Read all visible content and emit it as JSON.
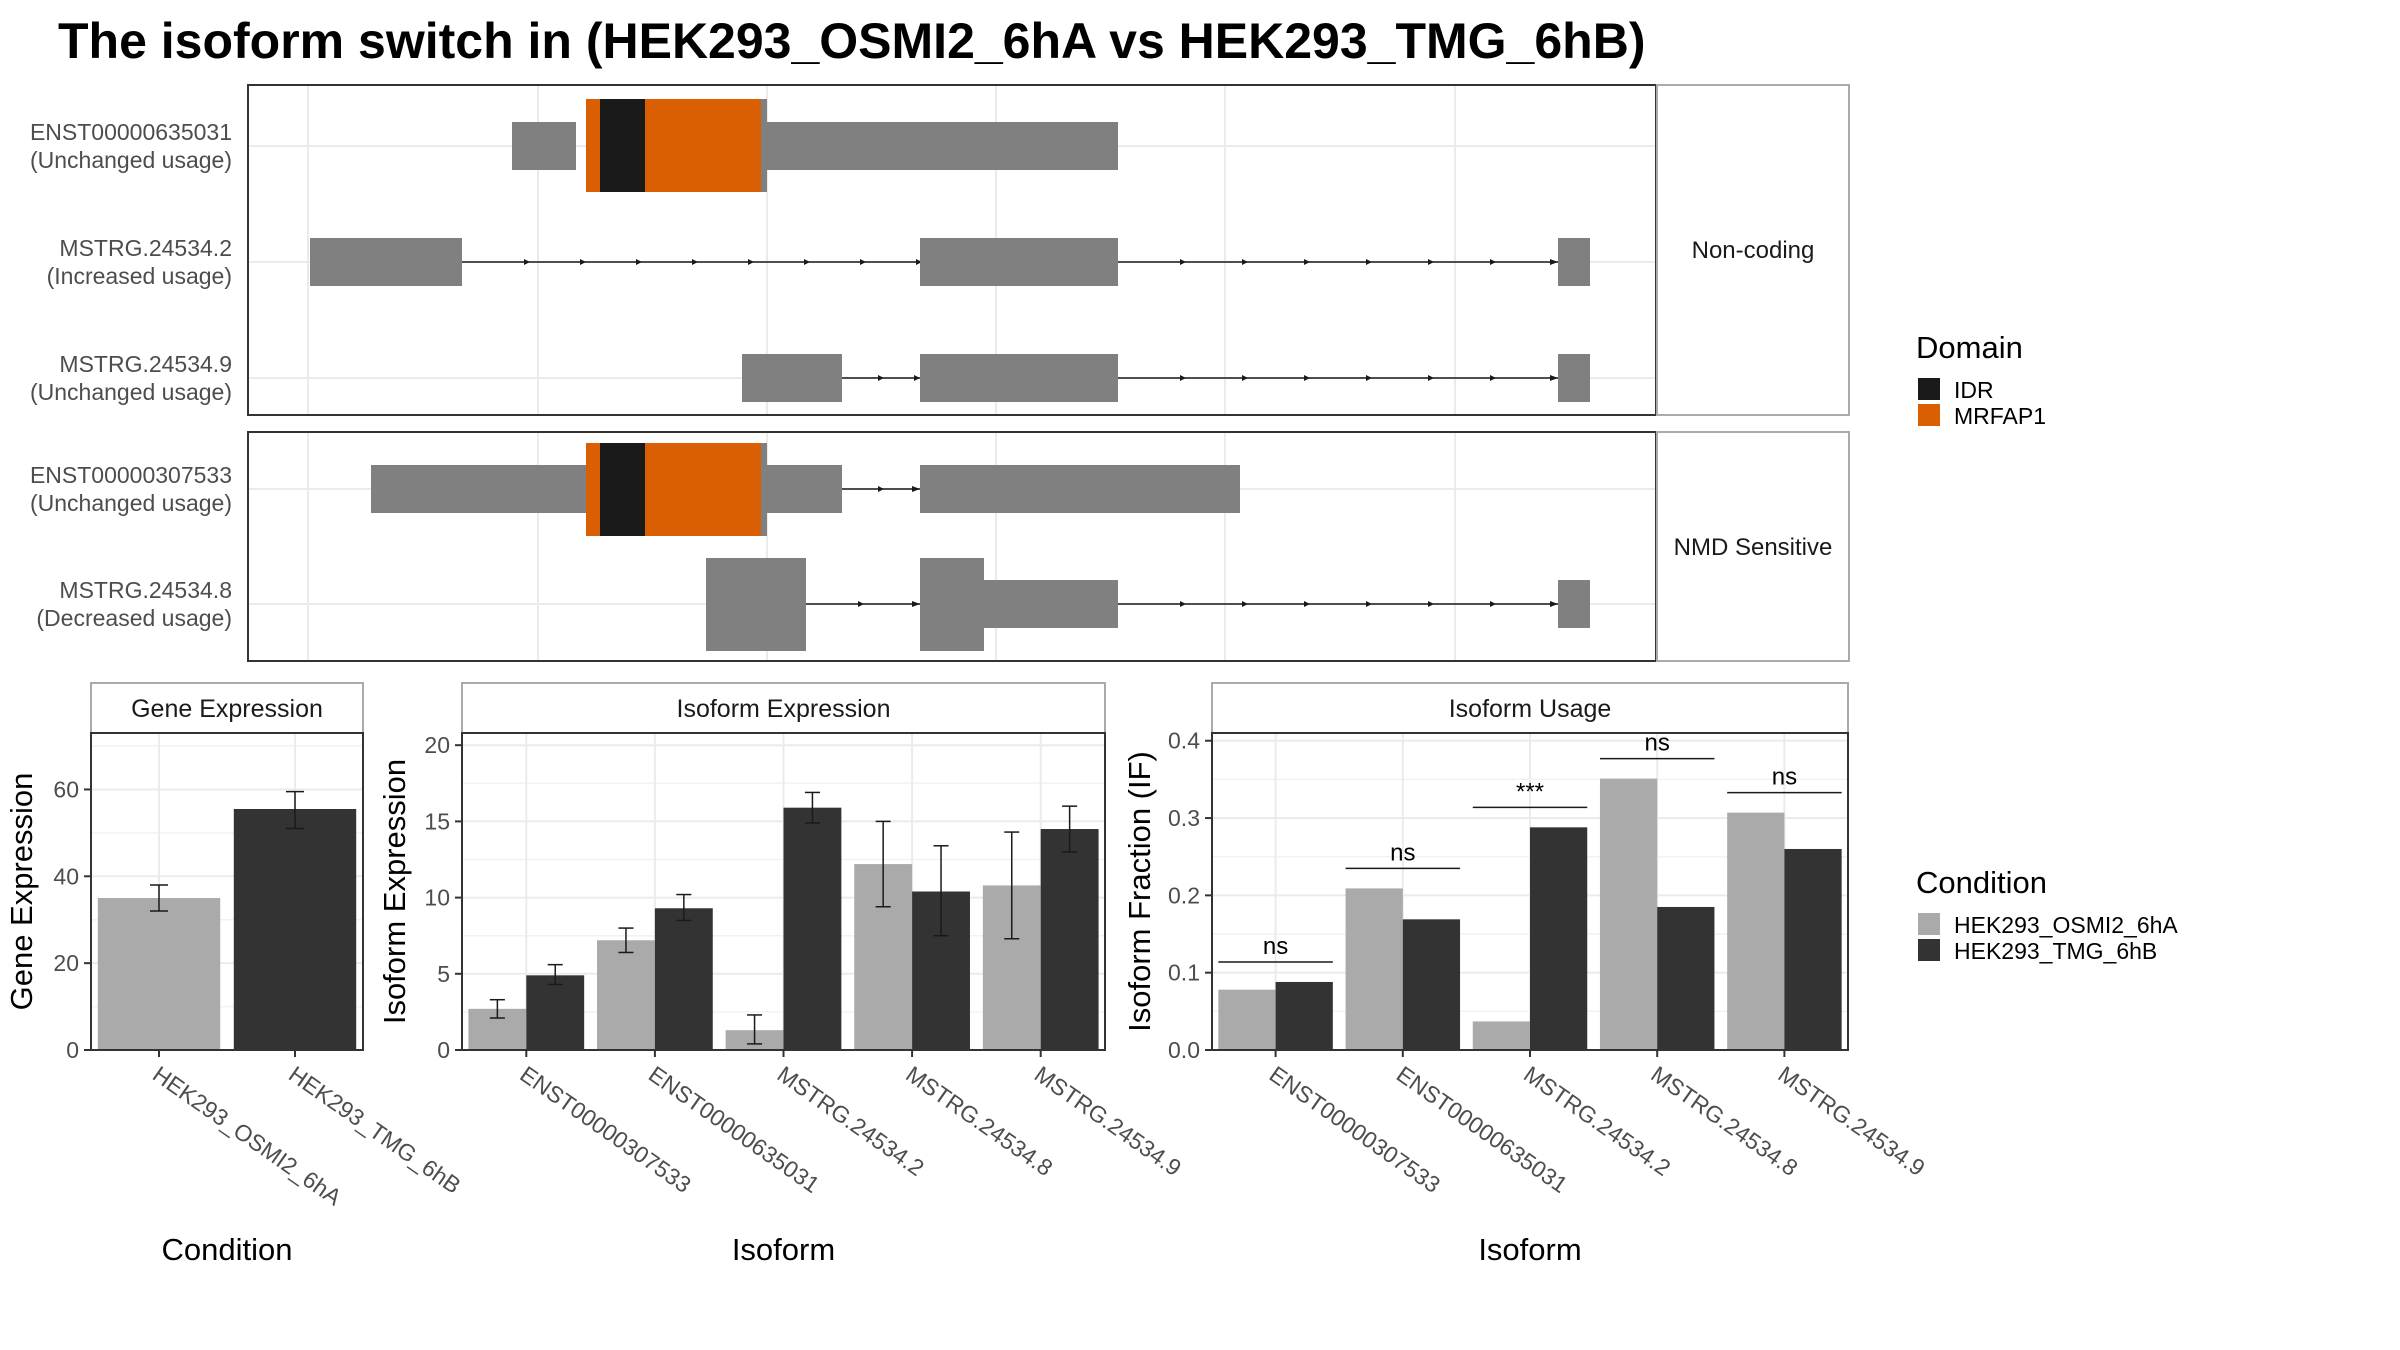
{
  "title": "The isoform switch in  (HEK293_OSMI2_6hA vs HEK293_TMG_6hB)",
  "structure": {
    "facets": [
      {
        "label": "Non-coding",
        "transcripts": [
          {
            "id": "ENST00000635031",
            "usage": "(Unchanged usage)"
          },
          {
            "id": "MSTRG.24534.2",
            "usage": "(Increased usage)"
          },
          {
            "id": "MSTRG.24534.9",
            "usage": "(Unchanged usage)"
          }
        ]
      },
      {
        "label": "NMD Sensitive",
        "transcripts": [
          {
            "id": "ENST00000307533",
            "usage": "(Unchanged usage)"
          },
          {
            "id": "MSTRG.24534.8",
            "usage": "(Decreased usage)"
          }
        ]
      }
    ],
    "domain_legend": {
      "title": "Domain",
      "items": [
        {
          "label": "IDR",
          "color": "#1a1a1a"
        },
        {
          "label": "MRFAP1",
          "color": "#d95f02"
        }
      ]
    }
  },
  "condition_legend": {
    "title": "Condition",
    "items": [
      {
        "label": "HEK293_OSMI2_6hA",
        "color": "#aaaaaa"
      },
      {
        "label": "HEK293_TMG_6hB",
        "color": "#333333"
      }
    ]
  },
  "chart_data": [
    {
      "type": "bar",
      "title": "Gene Expression",
      "xlabel": "Condition",
      "ylabel": "Gene Expression",
      "ylim": [
        0,
        73
      ],
      "yticks": [
        0,
        20,
        40,
        60
      ],
      "categories": [
        "HEK293_OSMI2_6hA",
        "HEK293_TMG_6hB"
      ],
      "values": [
        35,
        55.5
      ],
      "errors": [
        [
          32,
          38
        ],
        [
          51,
          59.5
        ]
      ],
      "colors": [
        "#aaaaaa",
        "#333333"
      ]
    },
    {
      "type": "bar",
      "title": "Isoform Expression",
      "xlabel": "Isoform",
      "ylabel": "Isoform Expression",
      "ylim": [
        0,
        20.8
      ],
      "yticks": [
        0,
        5,
        10,
        15,
        20
      ],
      "categories": [
        "ENST00000307533",
        "ENST00000635031",
        "MSTRG.24534.2",
        "MSTRG.24534.8",
        "MSTRG.24534.9"
      ],
      "series": [
        {
          "name": "HEK293_OSMI2_6hA",
          "values": [
            2.7,
            7.2,
            1.3,
            12.2,
            10.8
          ],
          "errors": [
            [
              2.1,
              3.3
            ],
            [
              6.4,
              8.0
            ],
            [
              0.4,
              2.3
            ],
            [
              9.4,
              15.0
            ],
            [
              7.3,
              14.3
            ]
          ]
        },
        {
          "name": "HEK293_TMG_6hB",
          "values": [
            4.9,
            9.3,
            15.9,
            10.4,
            14.5
          ],
          "errors": [
            [
              4.3,
              5.6
            ],
            [
              8.5,
              10.2
            ],
            [
              14.9,
              16.9
            ],
            [
              7.5,
              13.4
            ],
            [
              13.0,
              16.0
            ]
          ]
        }
      ]
    },
    {
      "type": "bar",
      "title": "Isoform Usage",
      "xlabel": "Isoform",
      "ylabel": "Isoform Fraction (IF)",
      "ylim": [
        0,
        0.41
      ],
      "yticks": [
        0.0,
        0.1,
        0.2,
        0.3,
        0.4
      ],
      "ytick_labels": [
        "0.0",
        "0.1",
        "0.2",
        "0.3",
        "0.4"
      ],
      "categories": [
        "ENST00000307533",
        "ENST00000635031",
        "MSTRG.24534.2",
        "MSTRG.24534.8",
        "MSTRG.24534.9"
      ],
      "series": [
        {
          "name": "HEK293_OSMI2_6hA",
          "values": [
            0.078,
            0.209,
            0.037,
            0.351,
            0.307
          ]
        },
        {
          "name": "HEK293_TMG_6hB",
          "values": [
            0.088,
            0.169,
            0.288,
            0.185,
            0.26
          ]
        }
      ],
      "significance": [
        "ns",
        "ns",
        "***",
        "ns",
        "ns"
      ]
    }
  ]
}
